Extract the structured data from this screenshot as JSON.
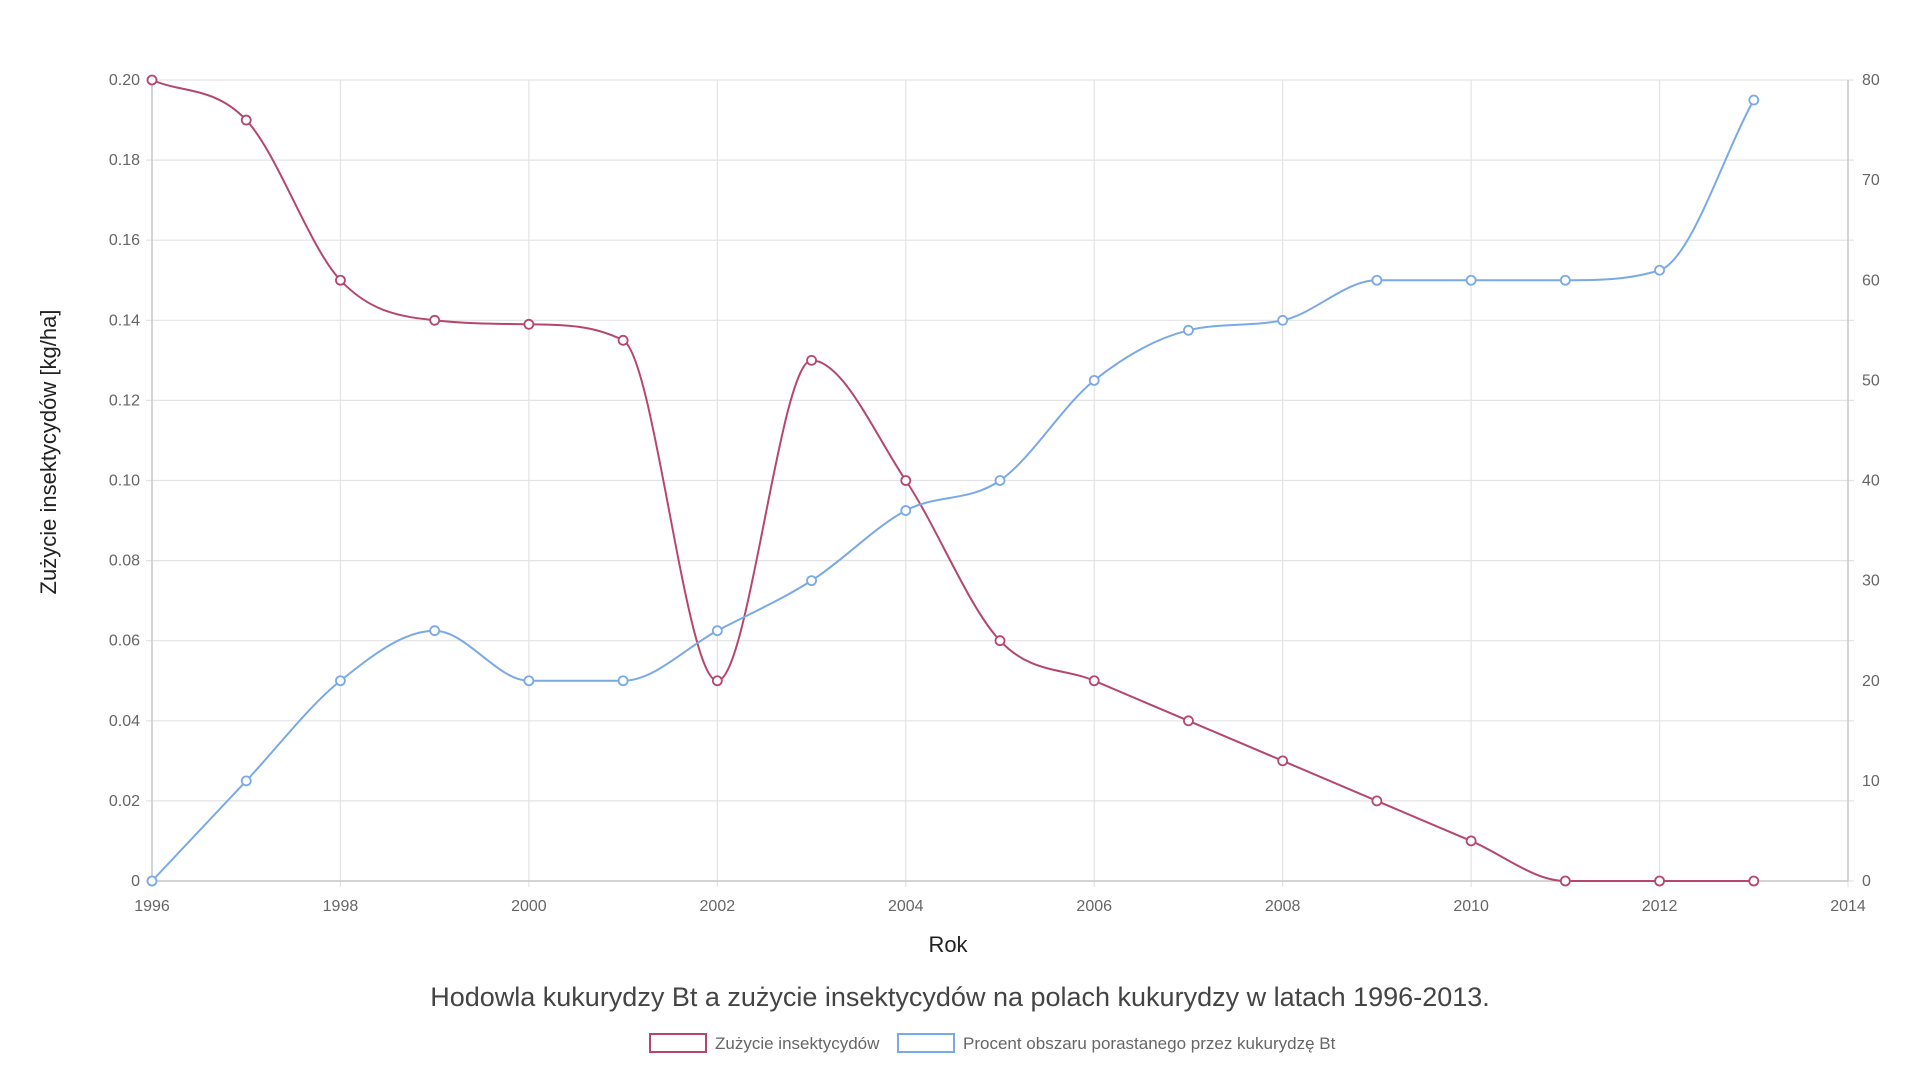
{
  "chart_data": {
    "type": "line",
    "title": "Hodowla kukurydzy Bt a zużycie insektycydów na polach kukurydzy w latach 1996-2013.",
    "xlabel": "Rok",
    "ylabel": "Zużycie insektycydów [kg/ha]",
    "y2label": "",
    "xlim": [
      1996,
      2014
    ],
    "ylim": [
      0,
      0.2
    ],
    "y2lim": [
      0,
      80
    ],
    "grid": true,
    "legend_position": "bottom",
    "x_ticks": [
      "1996",
      "1998",
      "2000",
      "2002",
      "2004",
      "2006",
      "2008",
      "2010",
      "2012",
      "2014"
    ],
    "y_ticks": [
      "0",
      "0.02",
      "0.04",
      "0.06",
      "0.08",
      "0.10",
      "0.12",
      "0.14",
      "0.16",
      "0.18",
      "0.20"
    ],
    "y2_ticks": [
      "0",
      "10",
      "20",
      "30",
      "40",
      "50",
      "60",
      "70",
      "80"
    ],
    "x": [
      1996,
      1997,
      1998,
      1999,
      2000,
      2001,
      2002,
      2003,
      2004,
      2005,
      2006,
      2007,
      2008,
      2009,
      2010,
      2011,
      2012,
      2013
    ],
    "series": [
      {
        "name": "Zużycie insektycydów",
        "axis": "left",
        "color": "#b5476b",
        "values": [
          0.2,
          0.19,
          0.15,
          0.14,
          0.139,
          0.135,
          0.05,
          0.13,
          0.1,
          0.06,
          0.05,
          0.04,
          0.03,
          0.02,
          0.01,
          0,
          0,
          0
        ]
      },
      {
        "name": "Procent obszaru porastanego przez kukurydzę Bt",
        "axis": "right",
        "color": "#7aa9e8",
        "values": [
          0,
          10,
          20,
          25,
          20,
          20,
          25,
          30,
          37,
          40,
          50,
          55,
          56,
          60,
          60,
          60,
          61,
          78
        ]
      }
    ]
  }
}
